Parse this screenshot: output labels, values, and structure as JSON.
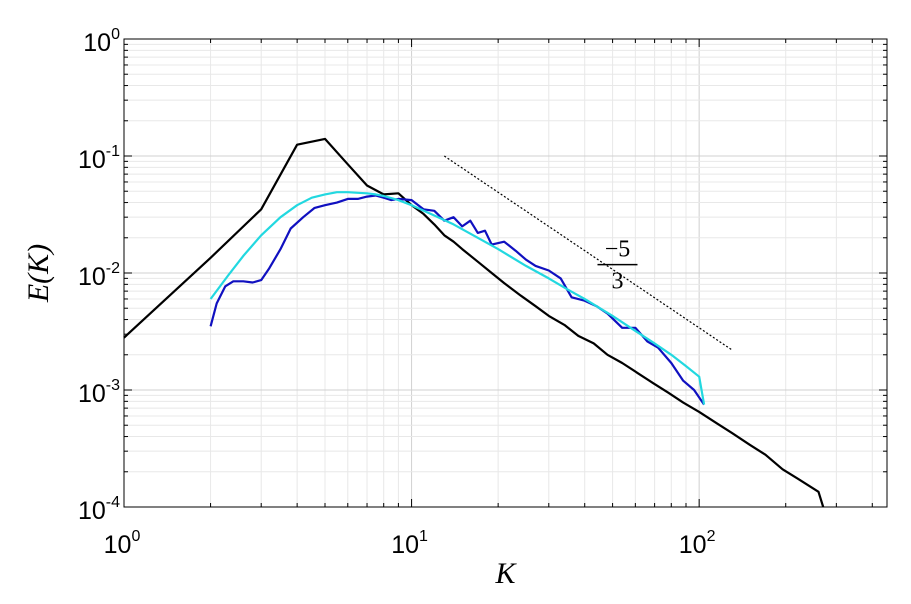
{
  "chart_data": {
    "type": "line",
    "title": "",
    "xlabel": "K",
    "ylabel": "E(K)",
    "xscale": "log",
    "yscale": "log",
    "xlim": [
      1,
      450
    ],
    "ylim": [
      0.0001,
      1
    ],
    "grid": true,
    "x_ticks": [
      {
        "base": "10",
        "exp": "0",
        "value": 1
      },
      {
        "base": "10",
        "exp": "1",
        "value": 10
      },
      {
        "base": "10",
        "exp": "2",
        "value": 100
      }
    ],
    "y_ticks": [
      {
        "base": "10",
        "exp": "0",
        "value": 1
      },
      {
        "base": "10",
        "exp": "-1",
        "value": 0.1
      },
      {
        "base": "10",
        "exp": "-2",
        "value": 0.01
      },
      {
        "base": "10",
        "exp": "-3",
        "value": 0.001
      },
      {
        "base": "10",
        "exp": "-4",
        "value": 0.0001
      }
    ],
    "annotation": {
      "numerator": "−5",
      "denominator": "3",
      "x": 52,
      "y": 0.0118
    },
    "series": [
      {
        "color": "#000000",
        "x": [
          1,
          2,
          3,
          4,
          5,
          6,
          7,
          8,
          9,
          10,
          11,
          12,
          13,
          14,
          15,
          17,
          19,
          21,
          24,
          27,
          30,
          34,
          38,
          43,
          48,
          54,
          61,
          69,
          78,
          88,
          100,
          115,
          130,
          150,
          170,
          195,
          220,
          260,
          270
        ],
        "y": [
          0.0028,
          0.0135,
          0.035,
          0.125,
          0.14,
          0.085,
          0.056,
          0.047,
          0.048,
          0.038,
          0.032,
          0.026,
          0.021,
          0.0185,
          0.016,
          0.0125,
          0.01,
          0.0082,
          0.0064,
          0.0052,
          0.0043,
          0.0036,
          0.0029,
          0.0025,
          0.002,
          0.0017,
          0.0014,
          0.00115,
          0.00095,
          0.00078,
          0.00065,
          0.00052,
          0.00043,
          0.00034,
          0.00028,
          0.00021,
          0.000175,
          0.000135,
          0.0001
        ]
      },
      {
        "color": "#1010c0",
        "x": [
          2,
          2.1,
          2.25,
          2.4,
          2.6,
          2.8,
          3.0,
          3.2,
          3.5,
          3.8,
          4.2,
          4.6,
          5.0,
          5.5,
          6.0,
          6.5,
          7.0,
          7.5,
          8.0,
          8.5,
          9.0,
          10,
          11,
          12,
          13,
          14,
          15,
          16,
          17,
          18,
          19,
          21,
          23,
          25,
          27,
          30,
          33,
          36,
          40,
          44,
          48,
          54,
          60,
          66,
          72,
          80,
          88,
          96,
          104
        ],
        "y": [
          0.0035,
          0.0055,
          0.0077,
          0.0085,
          0.0085,
          0.0083,
          0.0087,
          0.011,
          0.016,
          0.024,
          0.03,
          0.036,
          0.038,
          0.04,
          0.043,
          0.043,
          0.045,
          0.046,
          0.044,
          0.042,
          0.043,
          0.042,
          0.035,
          0.034,
          0.028,
          0.03,
          0.025,
          0.028,
          0.022,
          0.023,
          0.0175,
          0.0185,
          0.0155,
          0.013,
          0.0115,
          0.0105,
          0.009,
          0.0062,
          0.0058,
          0.0052,
          0.0045,
          0.0034,
          0.0034,
          0.0026,
          0.0023,
          0.0017,
          0.0012,
          0.001,
          0.00075
        ]
      },
      {
        "color": "#22d8e0",
        "x": [
          2,
          2.3,
          2.6,
          3,
          3.5,
          4,
          4.5,
          5,
          5.5,
          6,
          6.5,
          7,
          7.5,
          8,
          9,
          10,
          12,
          14,
          17,
          20,
          25,
          30,
          35,
          40,
          50,
          60,
          70,
          80,
          90,
          100,
          104
        ],
        "y": [
          0.006,
          0.0095,
          0.014,
          0.021,
          0.03,
          0.038,
          0.044,
          0.047,
          0.049,
          0.049,
          0.0485,
          0.048,
          0.047,
          0.0455,
          0.042,
          0.038,
          0.031,
          0.026,
          0.02,
          0.016,
          0.0115,
          0.009,
          0.0072,
          0.006,
          0.0043,
          0.0032,
          0.0025,
          0.002,
          0.0016,
          0.0013,
          0.00075
        ]
      },
      {
        "color": "#000000",
        "dashed": true,
        "x": [
          13,
          130
        ],
        "y": [
          0.1,
          0.0022
        ]
      }
    ]
  }
}
